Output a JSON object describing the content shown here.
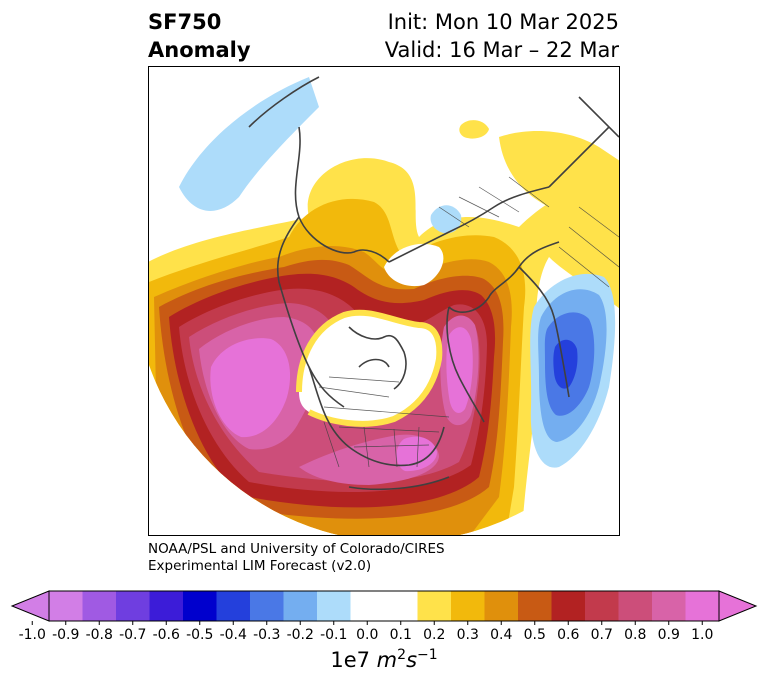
{
  "title": {
    "variable": "SF750",
    "subtitle": "Anomaly",
    "init": "Init: Mon 10 Mar 2025",
    "valid": "Valid: 16 Mar – 22 Mar"
  },
  "credit": {
    "line1": "NOAA/PSL and University of Colorado/CIRES",
    "line2": "Experimental LIM Forecast (v2.0)"
  },
  "colorbar": {
    "ticks": [
      "-1.0",
      "-0.9",
      "-0.8",
      "-0.7",
      "-0.6",
      "-0.5",
      "-0.4",
      "-0.3",
      "-0.2",
      "-0.1",
      "0.0",
      "0.1",
      "0.2",
      "0.3",
      "0.4",
      "0.5",
      "0.6",
      "0.7",
      "0.8",
      "0.9",
      "1.0"
    ],
    "colors": [
      "#d27ee6",
      "#a05ae3",
      "#6f3ee0",
      "#3c1cd8",
      "#0000cd",
      "#2440dc",
      "#4a78e6",
      "#74aef0",
      "#addcfa",
      "#ffffff",
      "#ffffff",
      "#ffe24a",
      "#f2b90c",
      "#e0900c",
      "#c85a14",
      "#b22222",
      "#c23a4c",
      "#cc4e7a",
      "#d863a8",
      "#e672d8"
    ],
    "unit_prefix": "1e7",
    "unit_base": "m",
    "unit_exp1": "2",
    "unit_mid": "s",
    "unit_exp2": "−1"
  },
  "map": {
    "projection": "north polar stereographic",
    "field_colors": {
      "light_blue": "#addcfa",
      "mid_blue": "#74aef0",
      "blue": "#4a78e6",
      "dark_blue": "#2440dc",
      "yellow": "#ffe24a",
      "gold": "#f2b90c",
      "orange": "#e0900c",
      "rust": "#c85a14",
      "red": "#b22222",
      "crimson": "#c23a4c",
      "rose": "#cc4e7a",
      "pink": "#d863a8",
      "magenta": "#e672d8",
      "coastline": "#404040"
    }
  }
}
